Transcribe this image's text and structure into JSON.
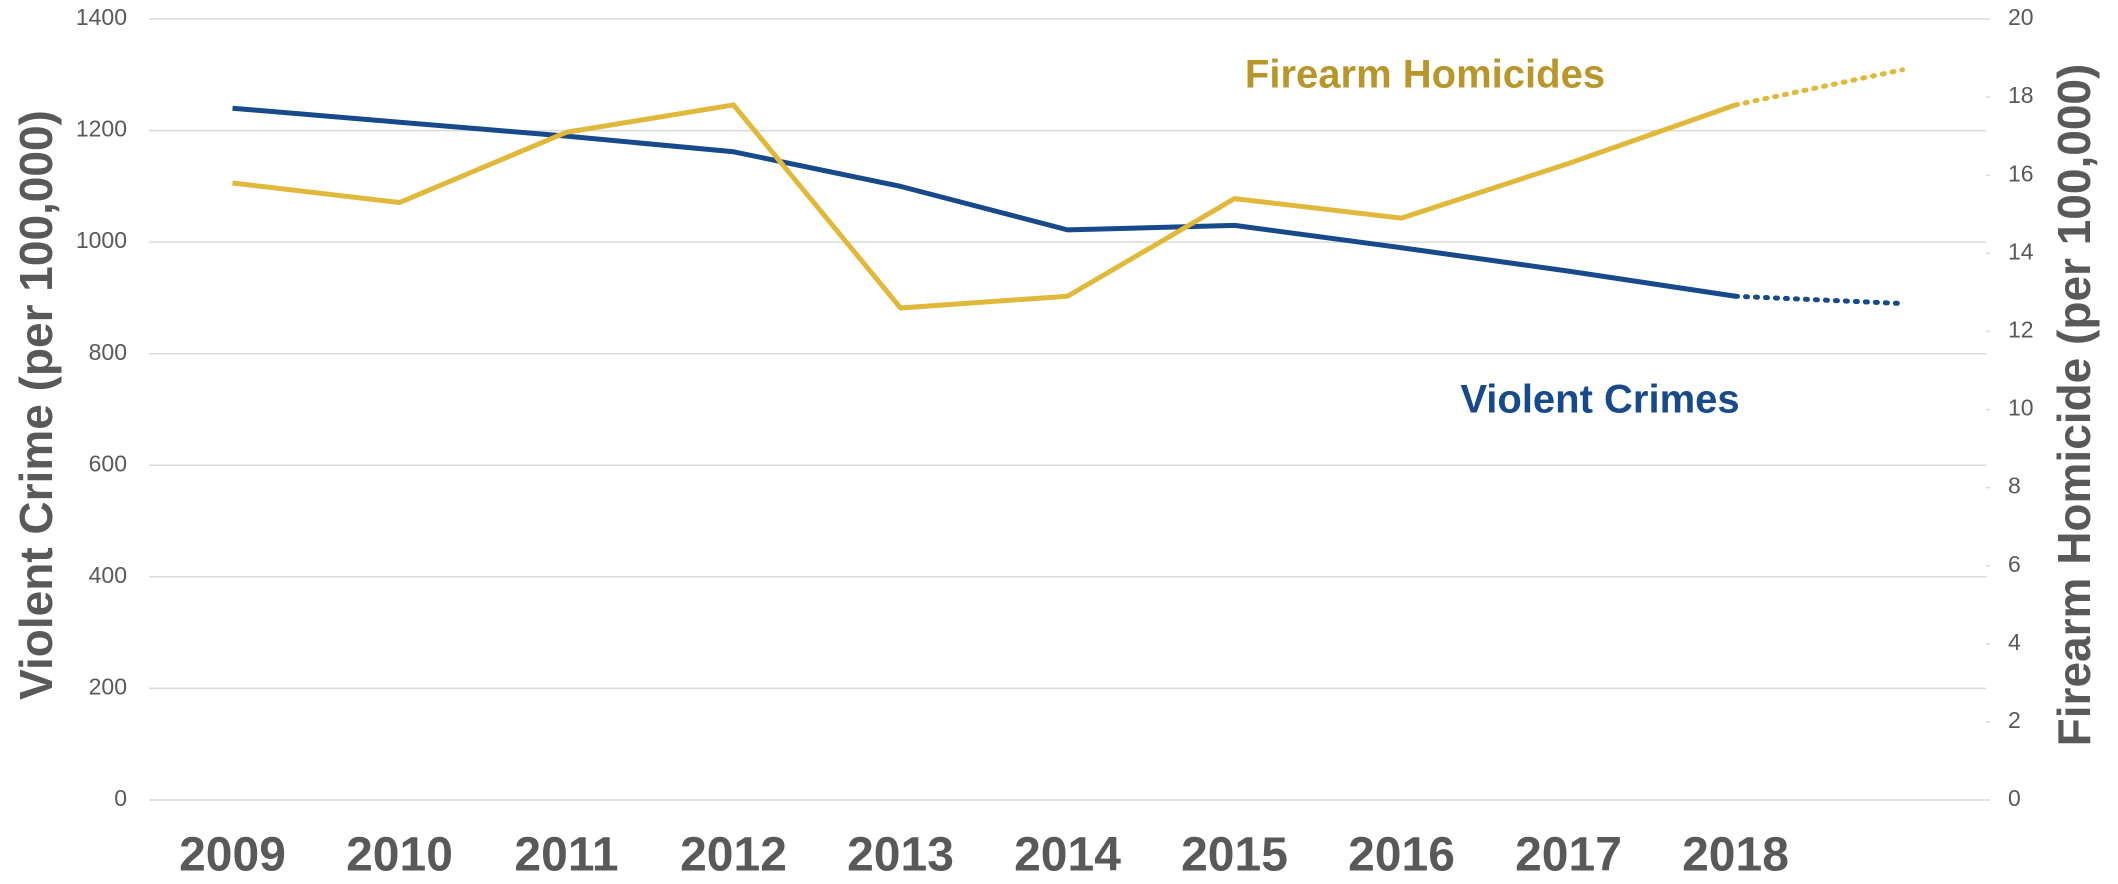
{
  "chart_data": {
    "type": "line",
    "categories": [
      "2009",
      "2010",
      "2011",
      "2012",
      "2013",
      "2014",
      "2015",
      "2016",
      "2017",
      "2018",
      null
    ],
    "series": [
      {
        "name": "Violent Crimes",
        "color": "#174a8b",
        "values": [
          1240,
          1215,
          1190,
          1162,
          1100,
          1022,
          1030,
          990,
          948,
          903,
          null
        ]
      },
      {
        "color": "#174a8b",
        "line_style": "dotted",
        "values": [
          null,
          null,
          null,
          null,
          null,
          null,
          null,
          null,
          null,
          903,
          890
        ]
      },
      {
        "name": "Firearm Homicides",
        "color": "#e0b83a",
        "label_color": "#b8962a",
        "axis": "y2",
        "values": [
          15.8,
          15.3,
          17.1,
          17.8,
          12.6,
          12.9,
          15.4,
          14.9,
          16.3,
          17.8,
          null
        ]
      },
      {
        "color": "#e0b83a",
        "axis": "y2",
        "line_style": "dotted",
        "values": [
          null,
          null,
          null,
          null,
          null,
          null,
          null,
          null,
          null,
          17.8,
          18.7
        ]
      }
    ],
    "y_label": "Violent Crime (per 100,000)",
    "y2_label": "Firearm Homicide (per 100,000)",
    "ylim": [
      0,
      1400
    ],
    "yticks": [
      0,
      200,
      400,
      600,
      800,
      1000,
      1200,
      1400
    ],
    "y2lim": [
      0,
      20
    ],
    "y2ticks": [
      0,
      2,
      4,
      6,
      8,
      10,
      12,
      14,
      16,
      18,
      20
    ],
    "grid": true
  }
}
